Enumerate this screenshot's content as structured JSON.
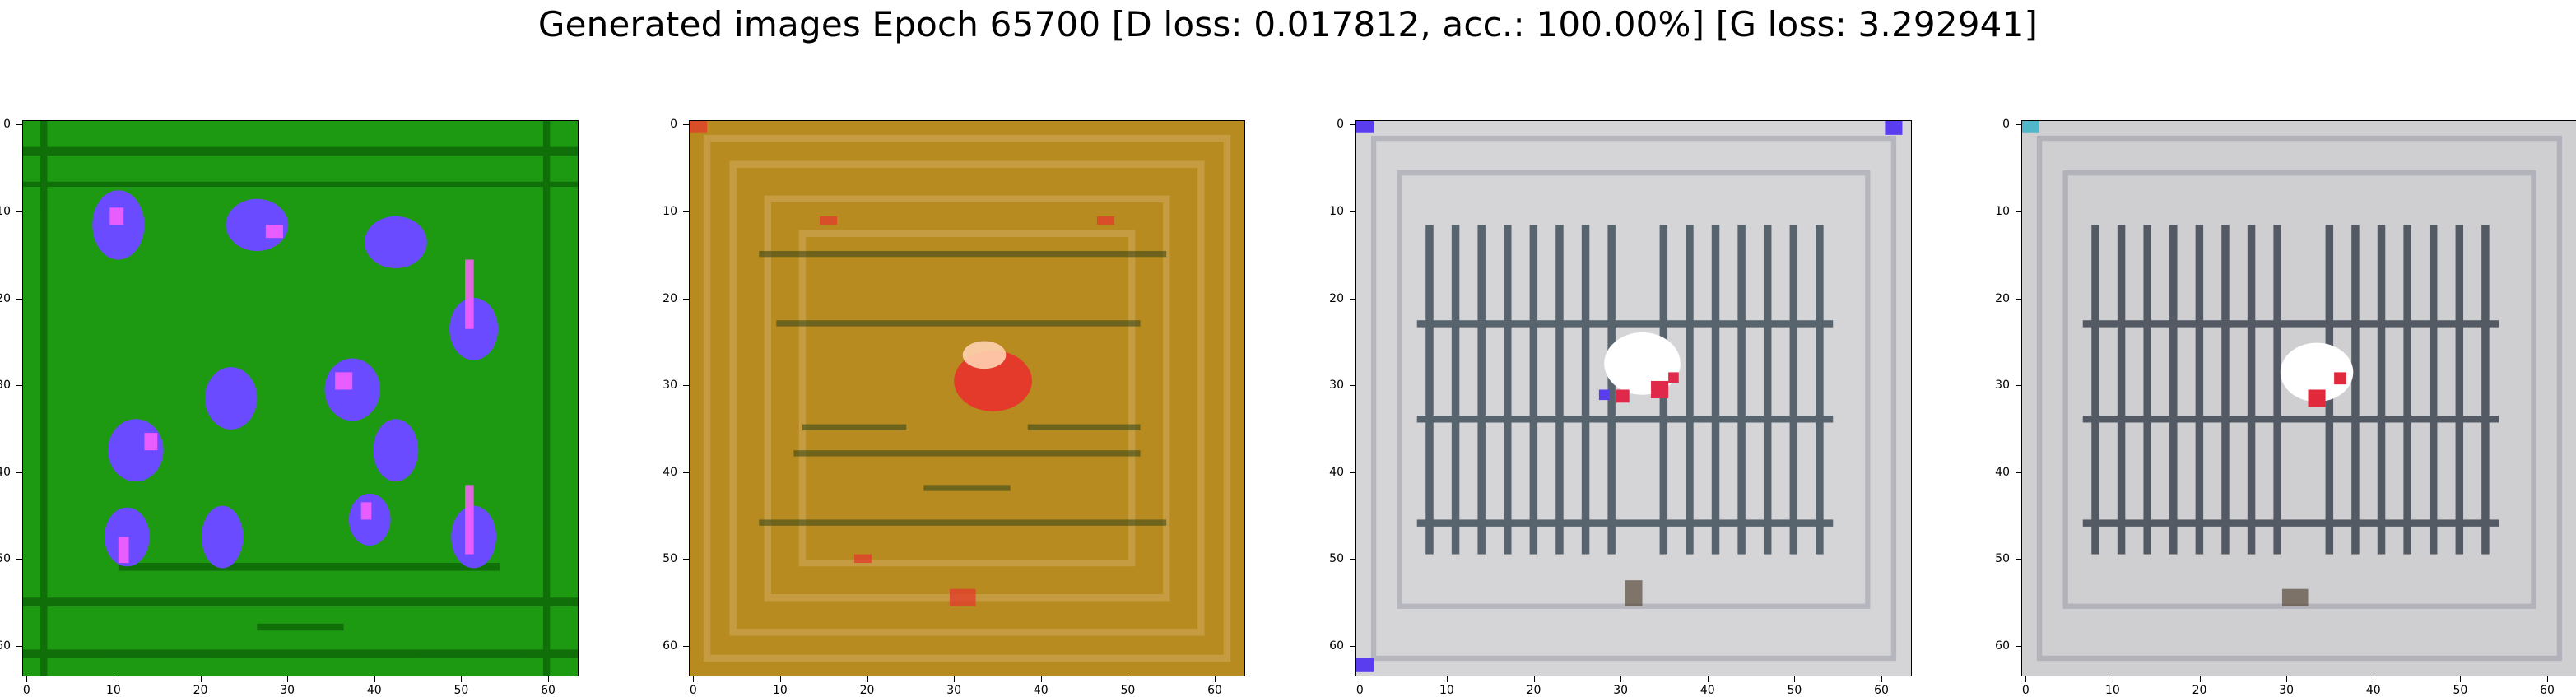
{
  "figure": {
    "title": "Generated images Epoch 65700 [D loss: 0.017812, acc.: 100.00%] [G loss: 3.292941]"
  },
  "panels": [
    {
      "name": "image-panel-1",
      "description_colors": {
        "base": "#1e9a12",
        "dark": "#0c5d08",
        "blob": "#6b4bff",
        "accent": "#ff60ff"
      }
    },
    {
      "name": "image-panel-2",
      "description_colors": {
        "base": "#b78b1f",
        "dark": "#3c4a1a",
        "blob": "#e33a2c",
        "accent": "#ffd0b0"
      }
    },
    {
      "name": "image-panel-3",
      "description_colors": {
        "base": "#d5d5d8",
        "dark": "#2e3d4a",
        "blob": "#e0284a",
        "accent": "#ffffff"
      }
    },
    {
      "name": "image-panel-4",
      "description_colors": {
        "base": "#cfcfd2",
        "dark": "#2c3340",
        "blob": "#e02a3c",
        "accent": "#ffffff"
      }
    }
  ],
  "axes": {
    "x_ticks": [
      "0",
      "10",
      "20",
      "30",
      "40",
      "50",
      "60"
    ],
    "y_ticks": [
      "0",
      "10",
      "20",
      "30",
      "40",
      "50",
      "60"
    ],
    "pixel_extent": 64
  }
}
